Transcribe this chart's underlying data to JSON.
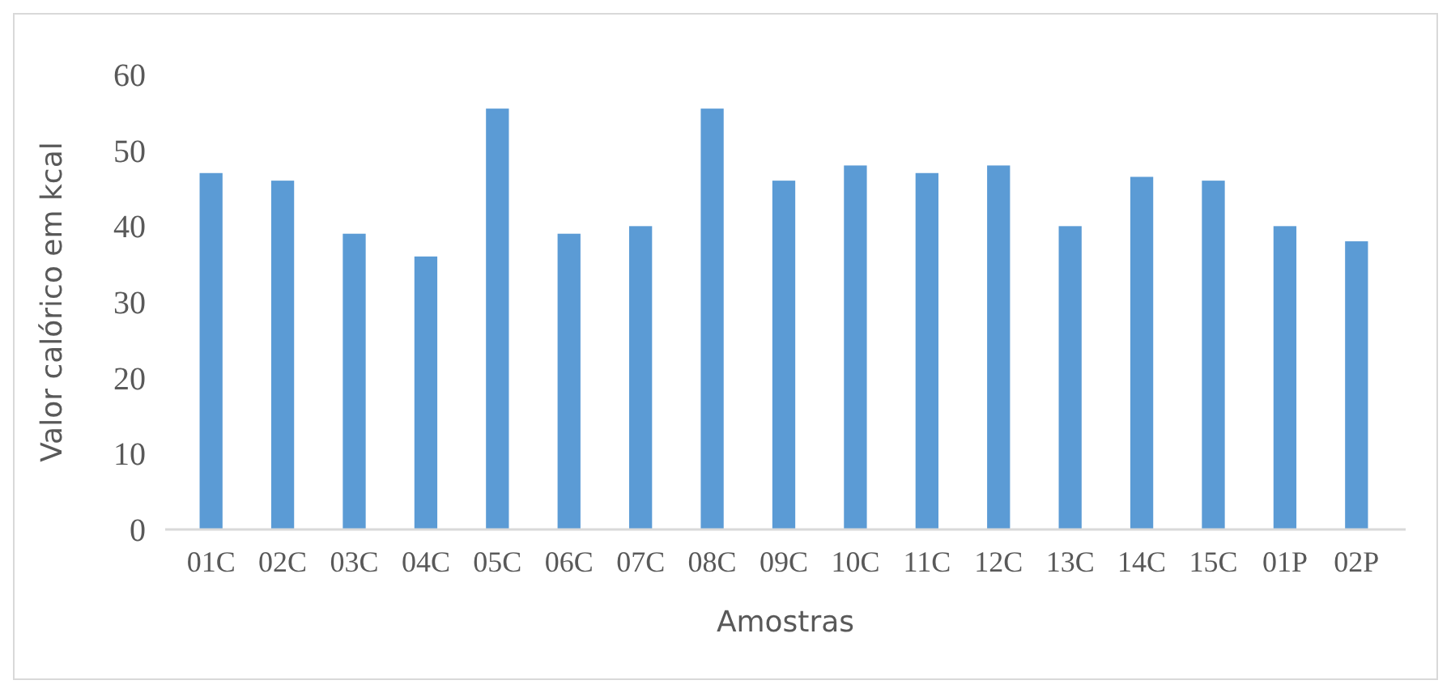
{
  "chart_data": {
    "type": "bar",
    "xlabel": "Amostras",
    "ylabel": "Valor calórico em kcal",
    "categories": [
      "01C",
      "02C",
      "03C",
      "04C",
      "05C",
      "06C",
      "07C",
      "08C",
      "09C",
      "10C",
      "11C",
      "12C",
      "13C",
      "14C",
      "15C",
      "01P",
      "02P"
    ],
    "values": [
      47,
      46,
      39,
      36,
      55.5,
      39,
      40,
      55.5,
      46,
      48,
      47,
      48,
      40,
      46.5,
      46,
      40,
      38
    ],
    "color": "#5b9bd5",
    "ylim": [
      0,
      60
    ],
    "yticks": [
      0,
      10,
      20,
      30,
      40,
      50,
      60
    ],
    "grid": false
  }
}
